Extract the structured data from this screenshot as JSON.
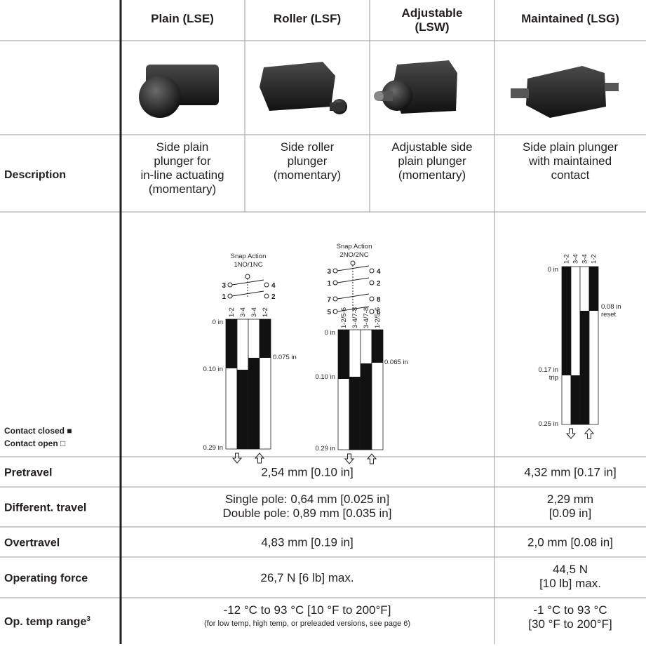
{
  "header": {
    "columns": [
      [
        "Plain (LSE)"
      ],
      [
        "Roller (LSF)"
      ],
      [
        "Adjustable",
        "(LSW)"
      ],
      [
        "Maintained (LSG)"
      ]
    ]
  },
  "description": {
    "label": "Description",
    "cells": [
      [
        "Side plain",
        "plunger for",
        "in-line actuating",
        "(momentary)"
      ],
      [
        "Side roller",
        "plunger",
        "(momentary)"
      ],
      [
        "Adjustable side",
        "plain plunger",
        "(momentary)"
      ],
      [
        "Side plain plunger",
        "with maintained",
        "contact"
      ]
    ]
  },
  "legend": {
    "closed": "Contact closed ■",
    "open": "Contact open □"
  },
  "diagrams": [
    {
      "title": [
        "Snap Action",
        "1NO/1NC"
      ],
      "terminals": [
        "3",
        "4",
        "1",
        "2"
      ],
      "columns": [
        "1-2",
        "3-4",
        "3-4",
        "1-2"
      ],
      "levels": [
        "0 in",
        "0.10 in",
        "0.29 in"
      ],
      "side_level": [
        "0.075 in"
      ]
    },
    {
      "title": [
        "Snap Action",
        "2NO/2NC"
      ],
      "terminals": [
        "3",
        "4",
        "1",
        "2",
        "7",
        "8",
        "5",
        "6"
      ],
      "columns": [
        "1-2/5-6",
        "3-4/7-8",
        "3-4/7-8",
        "1-2/5-6"
      ],
      "levels": [
        "0 in",
        "0.10 in",
        "0.29 in"
      ],
      "side_level": [
        "0.065 in"
      ]
    },
    {
      "columns": [
        "1-2",
        "3-4",
        "3-4",
        "1-2"
      ],
      "levels": [
        "0 in",
        "0.17 in",
        "trip",
        "0.25 in"
      ],
      "side_level": [
        "0.08 in",
        "reset"
      ]
    }
  ],
  "specs": [
    {
      "label": "Pretravel",
      "common": [
        "2,54 mm [0.10 in]"
      ],
      "maintained": [
        "4,32 mm [0.17 in]"
      ]
    },
    {
      "label": "Different. travel",
      "common": [
        "Single pole: 0,64 mm [0.025 in]",
        "Double pole: 0,89 mm [0.035 in]"
      ],
      "maintained": [
        "2,29 mm",
        "[0.09 in]"
      ]
    },
    {
      "label": "Overtravel",
      "common": [
        "4,83 mm [0.19 in]"
      ],
      "maintained": [
        "2,0 mm [0.08 in]"
      ]
    },
    {
      "label": "Operating force",
      "common": [
        "26,7 N [6 lb] max."
      ],
      "maintained": [
        "44,5 N",
        "[10 lb] max."
      ]
    },
    {
      "label": "Op. temp range",
      "superscript": "3",
      "common": [
        "-12 °C to 93 °C [10 °F to 200°F]"
      ],
      "common_note": "(for low temp, high temp, or preleaded versions, see page 6)",
      "maintained": [
        "-1 °C to 93 °C",
        "[30 °F to 200°F]"
      ]
    }
  ]
}
